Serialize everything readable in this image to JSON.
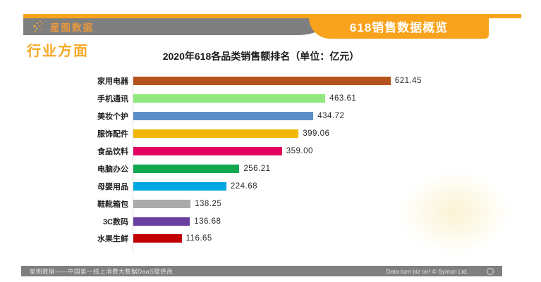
{
  "header": {
    "logo_text": "星图数据",
    "banner_title": "618销售数据概览",
    "accent_orange": "#F9A21C",
    "bar_gray": "#7F7F7F"
  },
  "section": {
    "title": "行业方面"
  },
  "chart_data": {
    "type": "bar",
    "orientation": "horizontal",
    "title": "2020年618各品类销售额排名（单位：亿元）",
    "unit": "亿元",
    "categories": [
      "家用电器",
      "手机通讯",
      "美妆个护",
      "服饰配件",
      "食品饮料",
      "电脑办公",
      "母婴用品",
      "鞋靴箱包",
      "3C数码",
      "水果生鲜"
    ],
    "values": [
      621.45,
      463.61,
      434.72,
      399.06,
      359.0,
      256.21,
      224.68,
      138.25,
      136.68,
      116.65
    ],
    "value_labels": [
      "621.45",
      "463.61",
      "434.72",
      "399.06",
      "359.00",
      "256.21",
      "224.68",
      "138.25",
      "136.68",
      "116.65"
    ],
    "bar_colors": [
      "#B5531F",
      "#90E87E",
      "#5B8EC6",
      "#F2B705",
      "#E4005F",
      "#12A850",
      "#00A7E1",
      "#ABABAB",
      "#6B3FA0",
      "#C00000"
    ],
    "xlim": [
      0,
      920
    ],
    "grid": false,
    "legend": false,
    "value_labels_shown": true
  },
  "footer": {
    "left_text": "星图数据——中国第一线上消费大数据DaaS提供商",
    "right_text": "Data turn biz on! © Syntun Ltd."
  }
}
